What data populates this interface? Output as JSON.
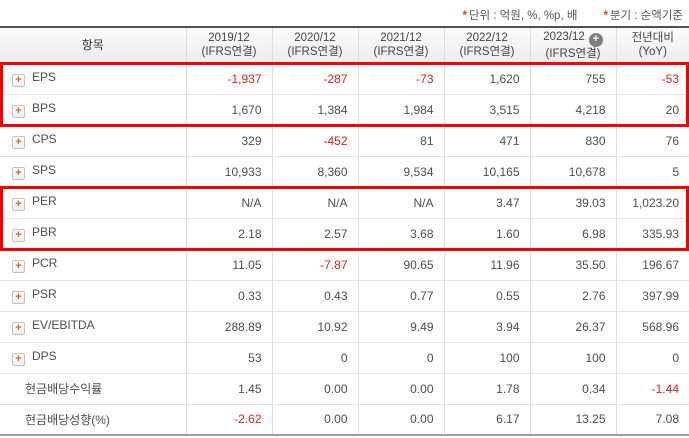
{
  "colors": {
    "highlight_border": "#f50000",
    "negative_text": "#e32119",
    "icon_orange": "#f05a16"
  },
  "note": {
    "unit": {
      "star": "*",
      "text": "단위 : 억원, %, %p, 배"
    },
    "basis": {
      "star": "*",
      "text": "분기 : 순액기준"
    }
  },
  "table": {
    "item_header": "항목",
    "columns": [
      {
        "period": "2019/12",
        "standard": "(IFRS연결)"
      },
      {
        "period": "2020/12",
        "standard": "(IFRS연결)"
      },
      {
        "period": "2021/12",
        "standard": "(IFRS연결)"
      },
      {
        "period": "2022/12",
        "standard": "(IFRS연결)"
      },
      {
        "period": "2023/12",
        "standard": "(IFRS연결)",
        "plus_icon": "+"
      },
      {
        "period": "전년대비",
        "standard": "(YoY)"
      }
    ],
    "rows": [
      {
        "label": "EPS",
        "has_icon": true,
        "values": [
          {
            "text": "-1,937",
            "negative": true
          },
          {
            "text": "-287",
            "negative": true
          },
          {
            "text": "-73",
            "negative": true
          },
          {
            "text": "1,620",
            "negative": false
          },
          {
            "text": "755",
            "negative": false
          },
          {
            "text": "-53",
            "negative": true
          }
        ]
      },
      {
        "label": "BPS",
        "has_icon": true,
        "values": [
          {
            "text": "1,670",
            "negative": false
          },
          {
            "text": "1,384",
            "negative": false
          },
          {
            "text": "1,984",
            "negative": false
          },
          {
            "text": "3,515",
            "negative": false
          },
          {
            "text": "4,218",
            "negative": false
          },
          {
            "text": "20",
            "negative": false
          }
        ]
      },
      {
        "label": "CPS",
        "has_icon": true,
        "values": [
          {
            "text": "329",
            "negative": false
          },
          {
            "text": "-452",
            "negative": true
          },
          {
            "text": "81",
            "negative": false
          },
          {
            "text": "471",
            "negative": false
          },
          {
            "text": "830",
            "negative": false
          },
          {
            "text": "76",
            "negative": false
          }
        ]
      },
      {
        "label": "SPS",
        "has_icon": true,
        "values": [
          {
            "text": "10,933",
            "negative": false
          },
          {
            "text": "8,360",
            "negative": false
          },
          {
            "text": "9,534",
            "negative": false
          },
          {
            "text": "10,165",
            "negative": false
          },
          {
            "text": "10,678",
            "negative": false
          },
          {
            "text": "5",
            "negative": false
          }
        ]
      },
      {
        "label": "PER",
        "has_icon": true,
        "values": [
          {
            "text": "N/A",
            "negative": false
          },
          {
            "text": "N/A",
            "negative": false
          },
          {
            "text": "N/A",
            "negative": false
          },
          {
            "text": "3.47",
            "negative": false
          },
          {
            "text": "39.03",
            "negative": false
          },
          {
            "text": "1,023.20",
            "negative": false
          }
        ]
      },
      {
        "label": "PBR",
        "has_icon": true,
        "values": [
          {
            "text": "2.18",
            "negative": false
          },
          {
            "text": "2.57",
            "negative": false
          },
          {
            "text": "3.68",
            "negative": false
          },
          {
            "text": "1.60",
            "negative": false
          },
          {
            "text": "6.98",
            "negative": false
          },
          {
            "text": "335.93",
            "negative": false
          }
        ]
      },
      {
        "label": "PCR",
        "has_icon": true,
        "values": [
          {
            "text": "11.05",
            "negative": false
          },
          {
            "text": "-7.87",
            "negative": true
          },
          {
            "text": "90.65",
            "negative": false
          },
          {
            "text": "11.96",
            "negative": false
          },
          {
            "text": "35.50",
            "negative": false
          },
          {
            "text": "196.67",
            "negative": false
          }
        ]
      },
      {
        "label": "PSR",
        "has_icon": true,
        "values": [
          {
            "text": "0.33",
            "negative": false
          },
          {
            "text": "0.43",
            "negative": false
          },
          {
            "text": "0.77",
            "negative": false
          },
          {
            "text": "0.55",
            "negative": false
          },
          {
            "text": "2.76",
            "negative": false
          },
          {
            "text": "397.99",
            "negative": false
          }
        ]
      },
      {
        "label": "EV/EBITDA",
        "has_icon": true,
        "values": [
          {
            "text": "288.89",
            "negative": false
          },
          {
            "text": "10.92",
            "negative": false
          },
          {
            "text": "9.49",
            "negative": false
          },
          {
            "text": "3.94",
            "negative": false
          },
          {
            "text": "26.37",
            "negative": false
          },
          {
            "text": "568.96",
            "negative": false
          }
        ]
      },
      {
        "label": "DPS",
        "has_icon": true,
        "values": [
          {
            "text": "53",
            "negative": false
          },
          {
            "text": "0",
            "negative": false
          },
          {
            "text": "0",
            "negative": false
          },
          {
            "text": "100",
            "negative": false
          },
          {
            "text": "100",
            "negative": false
          },
          {
            "text": "0",
            "negative": false
          }
        ]
      },
      {
        "label": "현금배당수익률",
        "has_icon": false,
        "values": [
          {
            "text": "1.45",
            "negative": false
          },
          {
            "text": "0.00",
            "negative": false
          },
          {
            "text": "0.00",
            "negative": false
          },
          {
            "text": "1.78",
            "negative": false
          },
          {
            "text": "0.34",
            "negative": false
          },
          {
            "text": "-1.44",
            "negative": true
          }
        ]
      },
      {
        "label": "현금배당성향(%)",
        "has_icon": false,
        "values": [
          {
            "text": "-2.62",
            "negative": true
          },
          {
            "text": "0.00",
            "negative": false
          },
          {
            "text": "0.00",
            "negative": false
          },
          {
            "text": "6.17",
            "negative": false
          },
          {
            "text": "13.25",
            "negative": false
          },
          {
            "text": "7.08",
            "negative": false
          }
        ]
      }
    ],
    "highlight_boxes": [
      {
        "rows": "EPS,BPS"
      },
      {
        "rows": "PER,PBR"
      }
    ]
  }
}
